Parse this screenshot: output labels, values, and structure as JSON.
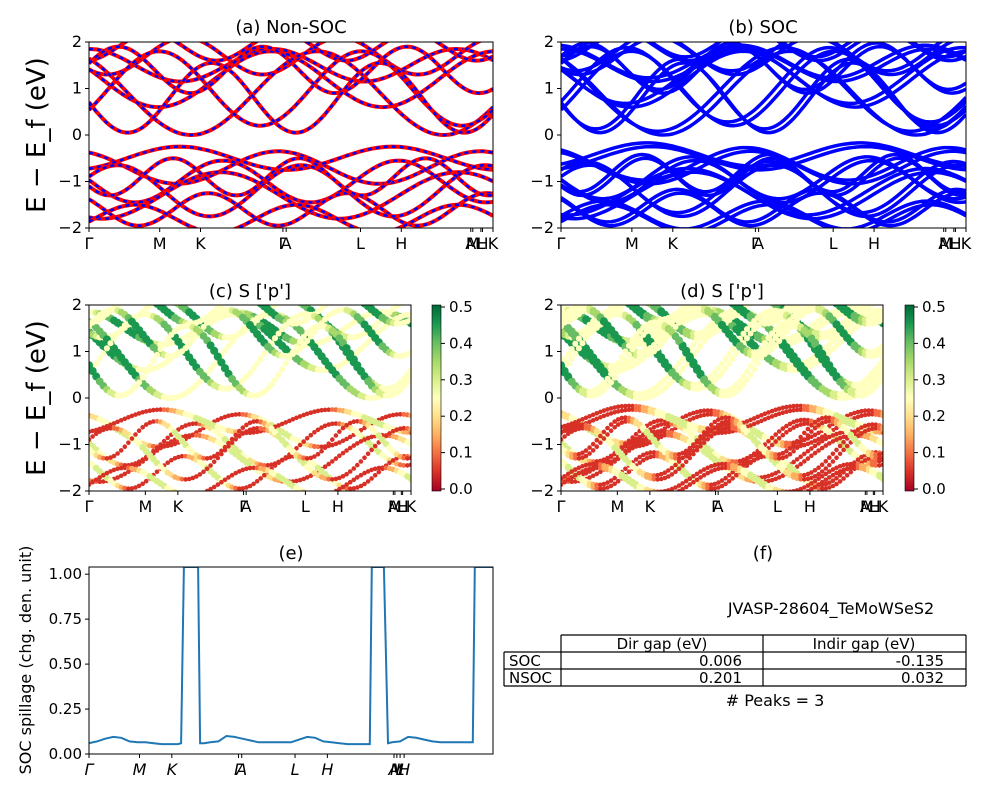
{
  "figure": {
    "ylabel_main": "E − E_f (eV)",
    "kpath_labels_top": [
      "Γ",
      "M",
      "K",
      "Γ",
      "A",
      "L",
      "H",
      "A",
      "M",
      "L",
      "H",
      "K"
    ],
    "kpath_labels_mid": [
      "Γ",
      "M",
      "K",
      "Γ",
      "A",
      "L",
      "H",
      "A",
      "M",
      "L",
      "H",
      "K"
    ]
  },
  "chart_data": [
    {
      "id": "a",
      "type": "line",
      "title": "(a) Non-SOC",
      "ylim": [
        -2,
        2
      ],
      "yticks": [
        -2,
        -1,
        0,
        1,
        2
      ],
      "series": [
        {
          "color": "#ff0000"
        },
        {
          "color": "#0000ff"
        }
      ]
    },
    {
      "id": "b",
      "type": "line",
      "title": "(b) SOC",
      "ylim": [
        -2,
        2
      ],
      "yticks": [
        -2,
        -1,
        0,
        1,
        2
      ],
      "series": [
        {
          "color": "#0000ff"
        }
      ]
    },
    {
      "id": "c",
      "type": "scatter",
      "title": "(c)  S ['p']",
      "ylim": [
        -2,
        2
      ],
      "yticks": [
        -2,
        -1,
        0,
        1,
        2
      ],
      "colorbar": {
        "range": [
          0.0,
          0.5
        ],
        "ticks": [
          "0.0",
          "0.1",
          "0.2",
          "0.3",
          "0.4",
          "0.5"
        ],
        "colormap": "RdYlGn"
      }
    },
    {
      "id": "d",
      "type": "scatter",
      "title": "(d) S ['p']",
      "ylim": [
        -2,
        2
      ],
      "yticks": [
        -2,
        -1,
        0,
        1,
        2
      ],
      "colorbar": {
        "range": [
          0.0,
          0.5
        ],
        "ticks": [
          "0.0",
          "0.1",
          "0.2",
          "0.3",
          "0.4",
          "0.5"
        ],
        "colormap": "RdYlGn"
      }
    },
    {
      "id": "e",
      "type": "line",
      "title": "(e)",
      "ylabel": "SOC spillage (chg. den. unit)",
      "ylim": [
        0,
        1.04
      ],
      "yticks": [
        "0.00",
        "0.25",
        "0.50",
        "0.75",
        "1.00"
      ],
      "xticklabels": [
        "Γ",
        "M",
        "K",
        "Γ",
        "A",
        "L",
        "H",
        "A",
        "M",
        "L",
        "H"
      ],
      "series": [
        {
          "color": "#1f77b4",
          "x": [
            0,
            0.02,
            0.04,
            0.06,
            0.08,
            0.1,
            0.12,
            0.14,
            0.16,
            0.18,
            0.2,
            0.22,
            0.228,
            0.235,
            0.245,
            0.27,
            0.275,
            0.285,
            0.3,
            0.32,
            0.34,
            0.36,
            0.37,
            0.38,
            0.4,
            0.42,
            0.44,
            0.46,
            0.48,
            0.5,
            0.52,
            0.54,
            0.56,
            0.58,
            0.6,
            0.62,
            0.64,
            0.66,
            0.695,
            0.7,
            0.71,
            0.73,
            0.74,
            0.75,
            0.77,
            0.79,
            0.81,
            0.83,
            0.85,
            0.87,
            0.89,
            0.95,
            0.955,
            0.965,
            1.0
          ],
          "y": [
            0.06,
            0.07,
            0.085,
            0.095,
            0.09,
            0.07,
            0.065,
            0.065,
            0.06,
            0.055,
            0.055,
            0.055,
            0.06,
            1.04,
            1.04,
            1.04,
            0.06,
            0.06,
            0.065,
            0.07,
            0.1,
            0.095,
            0.09,
            0.085,
            0.075,
            0.065,
            0.065,
            0.065,
            0.065,
            0.065,
            0.08,
            0.095,
            0.09,
            0.07,
            0.065,
            0.06,
            0.055,
            0.055,
            0.055,
            1.04,
            1.04,
            1.04,
            0.06,
            0.065,
            0.07,
            0.095,
            0.09,
            0.08,
            0.07,
            0.065,
            0.065,
            0.065,
            1.04,
            1.04,
            1.04
          ]
        }
      ]
    }
  ],
  "panel_f": {
    "title": "(f)",
    "material": "JVASP-28604_TeMoWSeS2",
    "table": {
      "headers": [
        "Dir gap (eV)",
        "Indir gap (eV)"
      ],
      "rows": [
        {
          "label": "SOC",
          "dir": "0.006",
          "indir": "-0.135"
        },
        {
          "label": "NSOC",
          "dir": "0.201",
          "indir": "0.032"
        }
      ]
    },
    "peaks": "# Peaks = 3"
  }
}
